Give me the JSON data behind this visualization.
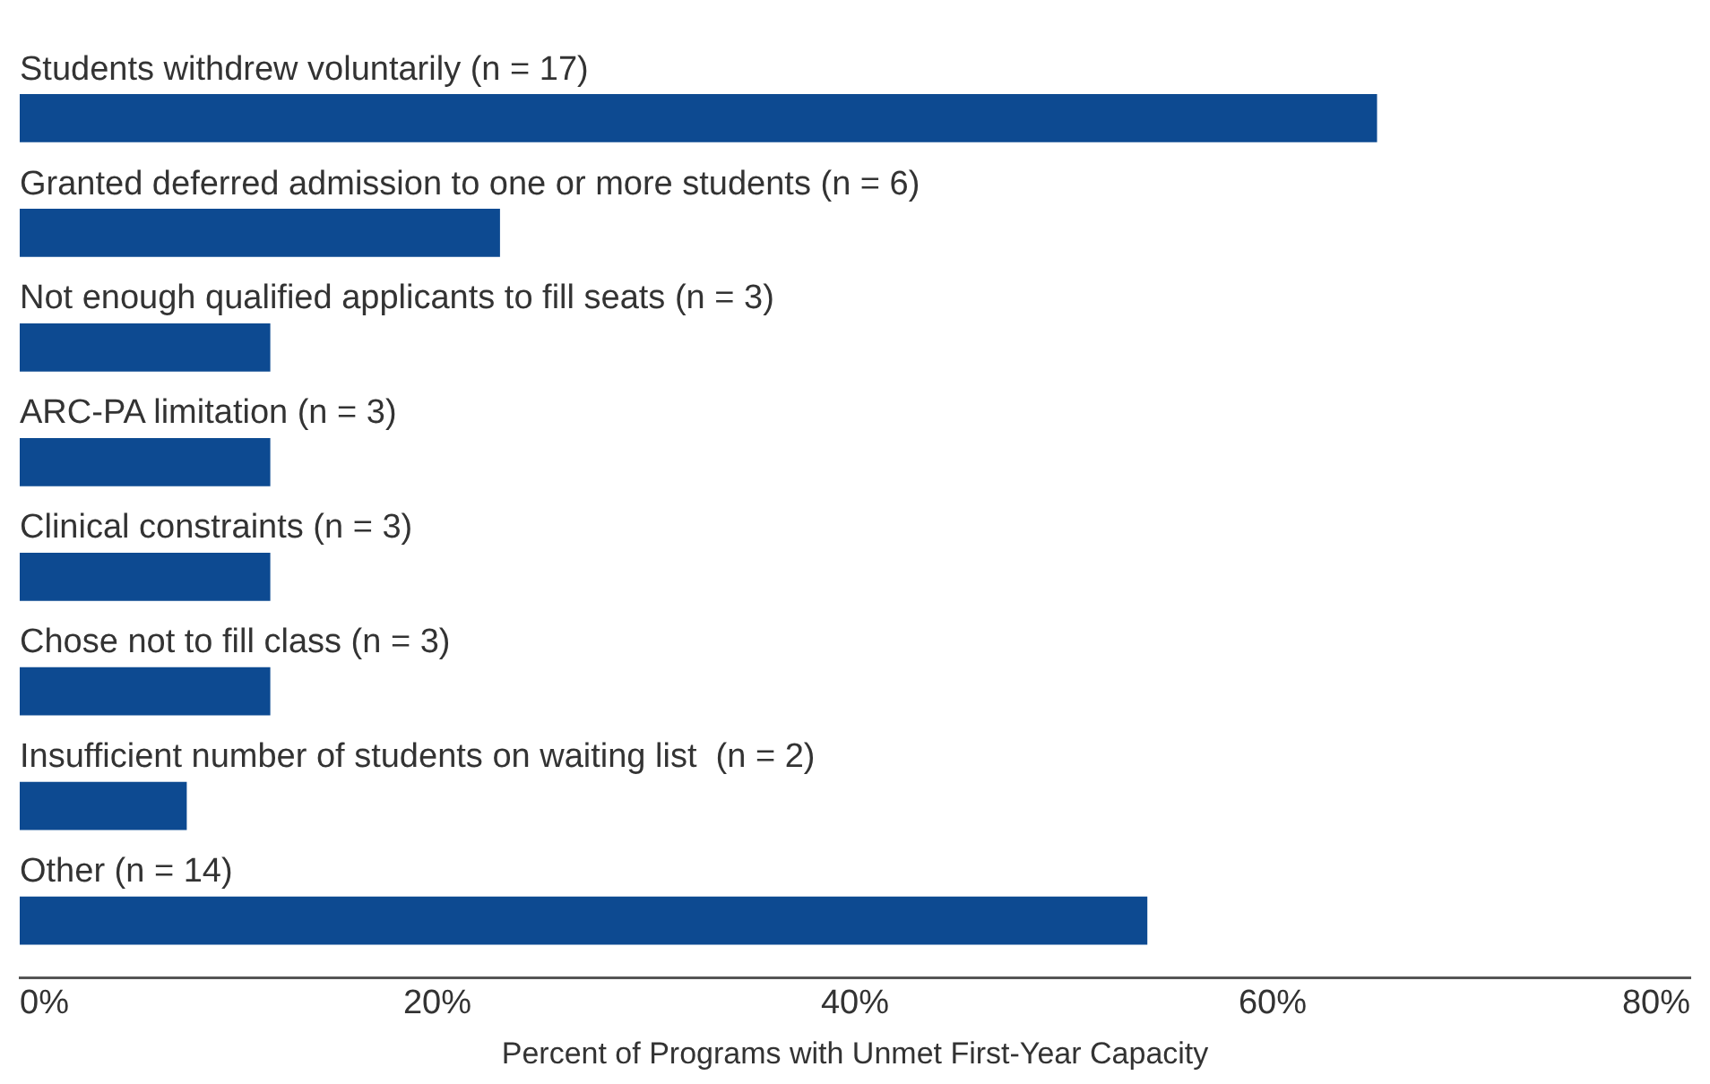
{
  "chart_data": {
    "type": "bar",
    "orientation": "horizontal",
    "categories": [
      "Students withdrew voluntarily (n = 17)",
      "Granted deferred admission to one or more students (n = 6)",
      "Not enough qualified applicants to fill seats (n = 3)",
      "ARC-PA limitation (n = 3)",
      "Clinical constraints (n = 3)",
      "Chose not to fill class (n = 3)",
      "Insufficient number of students on waiting list  (n = 2)",
      "Other (n = 14)"
    ],
    "values": [
      65,
      23,
      12,
      12,
      12,
      12,
      8,
      54
    ],
    "color": "#0d4a91",
    "xlim": [
      0,
      80
    ],
    "xticks": [
      {
        "value": 0,
        "label": "0%"
      },
      {
        "value": 20,
        "label": "20%"
      },
      {
        "value": 40,
        "label": "40%"
      },
      {
        "value": 60,
        "label": "60%"
      },
      {
        "value": 80,
        "label": "80%"
      }
    ],
    "xlabel": "Percent of Programs with Unmet First-Year Capacity",
    "grid": false,
    "legend": false
  }
}
